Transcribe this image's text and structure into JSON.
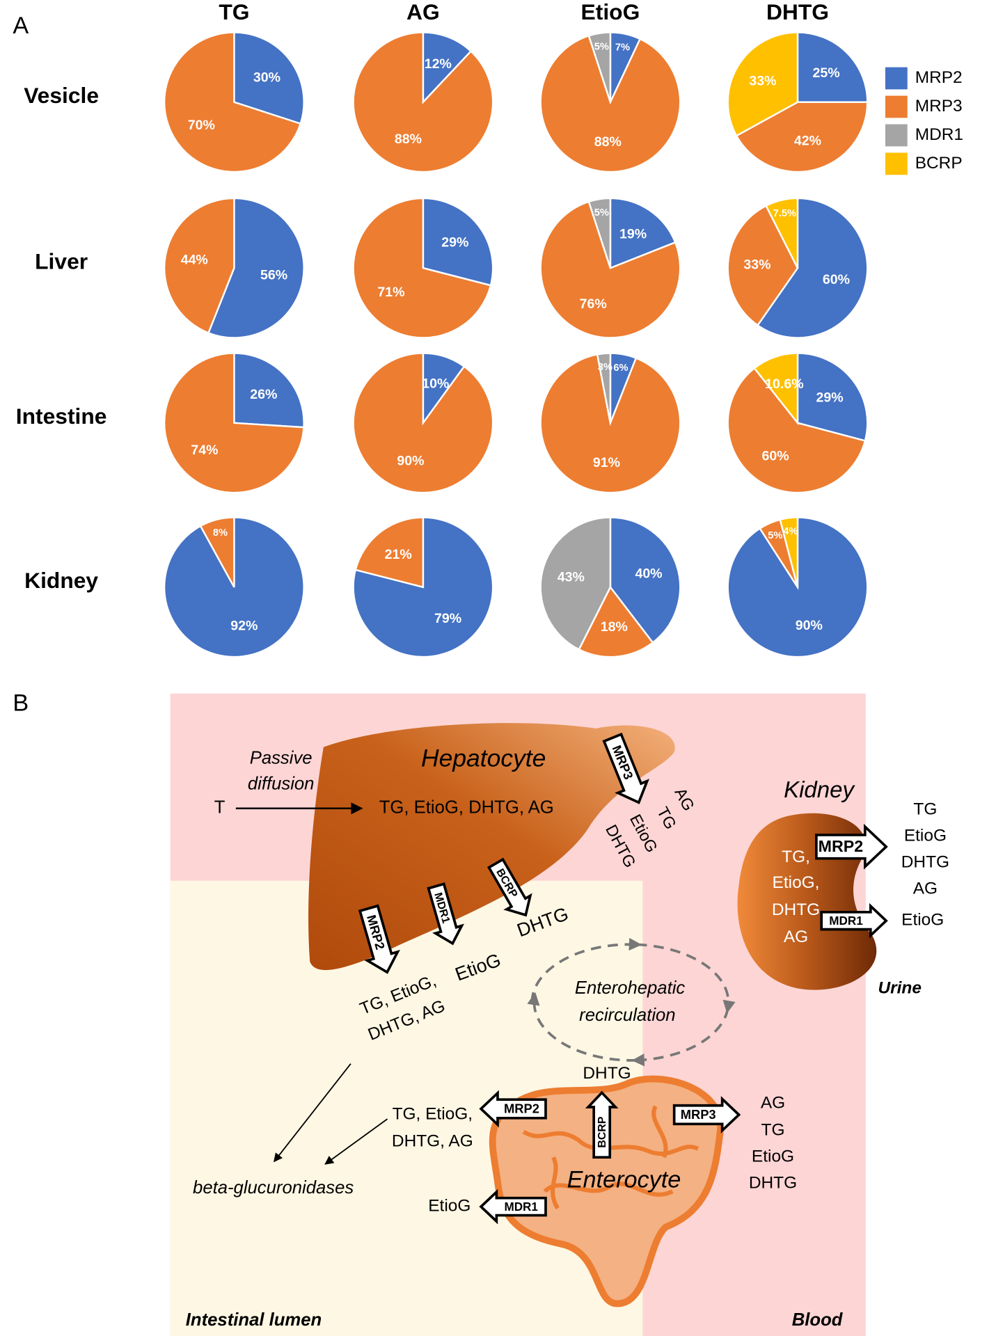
{
  "panel_a": {
    "label": "A",
    "columns": [
      "TG",
      "AG",
      "EtioG",
      "DHTG"
    ],
    "rows": [
      "Vesicle",
      "Liver",
      "Intestine",
      "Kidney"
    ],
    "legend": [
      {
        "name": "MRP2",
        "color": "#4472c4"
      },
      {
        "name": "MRP3",
        "color": "#ed7d31"
      },
      {
        "name": "MDR1",
        "color": "#a5a5a5"
      },
      {
        "name": "BCRP",
        "color": "#ffc000"
      }
    ]
  },
  "chart_data": [
    {
      "type": "pie",
      "categories": [
        "MRP2",
        "MRP3"
      ],
      "values": [
        30,
        70
      ],
      "value_labels": [
        "30%",
        "70%"
      ]
    },
    {
      "type": "pie",
      "categories": [
        "MRP2",
        "MRP3"
      ],
      "values": [
        12,
        88
      ],
      "value_labels": [
        "12%",
        "88%"
      ]
    },
    {
      "type": "pie",
      "categories": [
        "MRP2",
        "MRP3",
        "MDR1"
      ],
      "values": [
        7,
        88,
        5
      ],
      "value_labels": [
        "7%",
        "88%",
        "5%"
      ]
    },
    {
      "type": "pie",
      "categories": [
        "MRP2",
        "MRP3",
        "BCRP"
      ],
      "values": [
        25,
        42,
        33
      ],
      "value_labels": [
        "25%",
        "42%",
        "33%"
      ]
    },
    {
      "type": "pie",
      "categories": [
        "MRP2",
        "MRP3"
      ],
      "values": [
        56,
        44
      ],
      "value_labels": [
        "56%",
        "44%"
      ]
    },
    {
      "type": "pie",
      "categories": [
        "MRP2",
        "MRP3"
      ],
      "values": [
        29,
        71
      ],
      "value_labels": [
        "29%",
        "71%"
      ]
    },
    {
      "type": "pie",
      "categories": [
        "MRP2",
        "MRP3",
        "MDR1"
      ],
      "values": [
        19,
        76,
        5
      ],
      "value_labels": [
        "19%",
        "76%",
        "5%"
      ]
    },
    {
      "type": "pie",
      "categories": [
        "MRP2",
        "MRP3",
        "BCRP"
      ],
      "values": [
        60,
        33,
        7.5
      ],
      "value_labels": [
        "60%",
        "33%",
        "7.5%"
      ]
    },
    {
      "type": "pie",
      "categories": [
        "MRP2",
        "MRP3"
      ],
      "values": [
        26,
        74
      ],
      "value_labels": [
        "26%",
        "74%"
      ]
    },
    {
      "type": "pie",
      "categories": [
        "MRP2",
        "MRP3"
      ],
      "values": [
        10,
        90
      ],
      "value_labels": [
        "10%",
        "90%"
      ]
    },
    {
      "type": "pie",
      "categories": [
        "MRP2",
        "MRP3",
        "MDR1"
      ],
      "values": [
        6,
        91,
        3
      ],
      "value_labels": [
        "6%",
        "91%",
        "3%"
      ]
    },
    {
      "type": "pie",
      "categories": [
        "MRP2",
        "MRP3",
        "BCRP"
      ],
      "values": [
        29,
        60,
        10.6
      ],
      "value_labels": [
        "29%",
        "60%",
        "10.6%"
      ]
    },
    {
      "type": "pie",
      "categories": [
        "MRP2",
        "MRP3"
      ],
      "values": [
        92,
        8
      ],
      "value_labels": [
        "92%",
        "8%"
      ]
    },
    {
      "type": "pie",
      "categories": [
        "MRP2",
        "MRP3"
      ],
      "values": [
        79,
        21
      ],
      "value_labels": [
        "79%",
        "21%"
      ]
    },
    {
      "type": "pie",
      "categories": [
        "MRP2",
        "MRP3",
        "MDR1"
      ],
      "values": [
        40,
        18,
        43
      ],
      "value_labels": [
        "40%",
        "18%",
        "43%"
      ]
    },
    {
      "type": "pie",
      "categories": [
        "MRP2",
        "MRP3",
        "BCRP"
      ],
      "values": [
        90,
        5,
        4
      ],
      "value_labels": [
        "90%",
        "5%",
        "4%"
      ]
    }
  ],
  "panel_b": {
    "label": "B",
    "intestinal_lumen": "Intestinal lumen",
    "blood": "Blood",
    "hepatocyte": {
      "title": "Hepatocyte",
      "uptake": {
        "label": [
          "Passive",
          "diffusion"
        ],
        "substrate": "T",
        "products": "TG, EtioG, DHTG, AG"
      },
      "efflux": [
        {
          "transporter": "MRP3",
          "products": [
            "AG",
            "TG",
            "EtioG",
            "DHTG"
          ]
        },
        {
          "transporter": "MRP2",
          "products": [
            "TG, EtioG,",
            "DHTG, AG"
          ]
        },
        {
          "transporter": "MDR1",
          "products": [
            "EtioG"
          ]
        },
        {
          "transporter": "BCRP",
          "products": [
            "DHTG"
          ]
        }
      ]
    },
    "recirculation": [
      "Enterohepatic",
      "recirculation"
    ],
    "kidney": {
      "title": "Kidney",
      "contents": [
        "TG,",
        "EtioG,",
        "DHTG",
        "AG"
      ],
      "efflux": [
        {
          "transporter": "MRP2",
          "products": [
            "TG",
            "EtioG",
            "DHTG",
            "AG"
          ]
        },
        {
          "transporter": "MDR1",
          "products": [
            "EtioG"
          ]
        }
      ],
      "output": "Urine"
    },
    "enterocyte": {
      "title": "Enterocyte",
      "efflux": [
        {
          "transporter": "BCRP",
          "products": [
            "DHTG"
          ]
        },
        {
          "transporter": "MRP2",
          "products": [
            "TG, EtioG,",
            "DHTG, AG"
          ]
        },
        {
          "transporter": "MDR1",
          "products": [
            "EtioG"
          ]
        },
        {
          "transporter": "MRP3",
          "products": [
            "AG",
            "TG",
            "EtioG",
            "DHTG"
          ]
        }
      ]
    },
    "enzyme": "beta-glucuronidases"
  }
}
